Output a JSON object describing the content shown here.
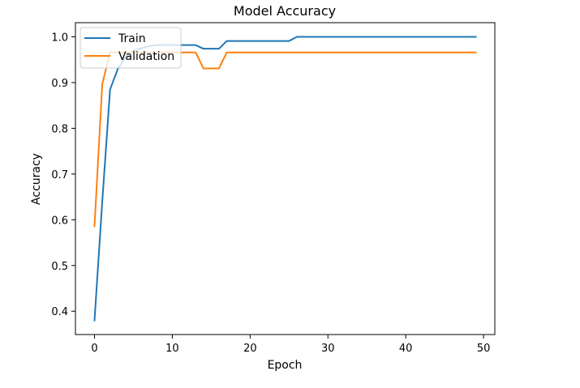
{
  "chart_data": {
    "type": "line",
    "title": "Model Accuracy",
    "xlabel": "Epoch",
    "ylabel": "Accuracy",
    "xlim": [
      -2.45,
      51.45
    ],
    "ylim": [
      0.349,
      1.031
    ],
    "xticks": [
      0,
      10,
      20,
      30,
      40,
      50
    ],
    "yticks": [
      0.4,
      0.5,
      0.6,
      0.7,
      0.8,
      0.9,
      1.0
    ],
    "ytick_labels": [
      "0.4",
      "0.5",
      "0.6",
      "0.7",
      "0.8",
      "0.9",
      "1.0"
    ],
    "grid": false,
    "legend_position": "upper-left",
    "x": [
      0,
      1,
      2,
      3,
      4,
      5,
      6,
      7,
      8,
      9,
      10,
      11,
      12,
      13,
      14,
      15,
      16,
      17,
      18,
      19,
      20,
      21,
      22,
      23,
      24,
      25,
      26,
      27,
      28,
      29,
      30,
      31,
      32,
      33,
      34,
      35,
      36,
      37,
      38,
      39,
      40,
      41,
      42,
      43,
      44,
      45,
      46,
      47,
      48,
      49
    ],
    "series": [
      {
        "name": "Train",
        "color": "#1f77b4",
        "values": [
          0.38,
          0.64,
          0.885,
          0.93,
          0.955,
          0.97,
          0.975,
          0.98,
          0.982,
          0.982,
          0.982,
          0.982,
          0.982,
          0.982,
          0.974,
          0.974,
          0.974,
          0.991,
          0.991,
          0.991,
          0.991,
          0.991,
          0.991,
          0.991,
          0.991,
          0.991,
          1.0,
          1.0,
          1.0,
          1.0,
          1.0,
          1.0,
          1.0,
          1.0,
          1.0,
          1.0,
          1.0,
          1.0,
          1.0,
          1.0,
          1.0,
          1.0,
          1.0,
          1.0,
          1.0,
          1.0,
          1.0,
          1.0,
          1.0,
          1.0
        ]
      },
      {
        "name": "Validation",
        "color": "#ff7f0e",
        "values": [
          0.586,
          0.897,
          0.966,
          0.966,
          0.966,
          0.966,
          0.966,
          0.966,
          0.966,
          0.966,
          0.966,
          0.966,
          0.966,
          0.966,
          0.931,
          0.931,
          0.931,
          0.966,
          0.966,
          0.966,
          0.966,
          0.966,
          0.966,
          0.966,
          0.966,
          0.966,
          0.966,
          0.966,
          0.966,
          0.966,
          0.966,
          0.966,
          0.966,
          0.966,
          0.966,
          0.966,
          0.966,
          0.966,
          0.966,
          0.966,
          0.966,
          0.966,
          0.966,
          0.966,
          0.966,
          0.966,
          0.966,
          0.966,
          0.966,
          0.966
        ]
      }
    ]
  }
}
